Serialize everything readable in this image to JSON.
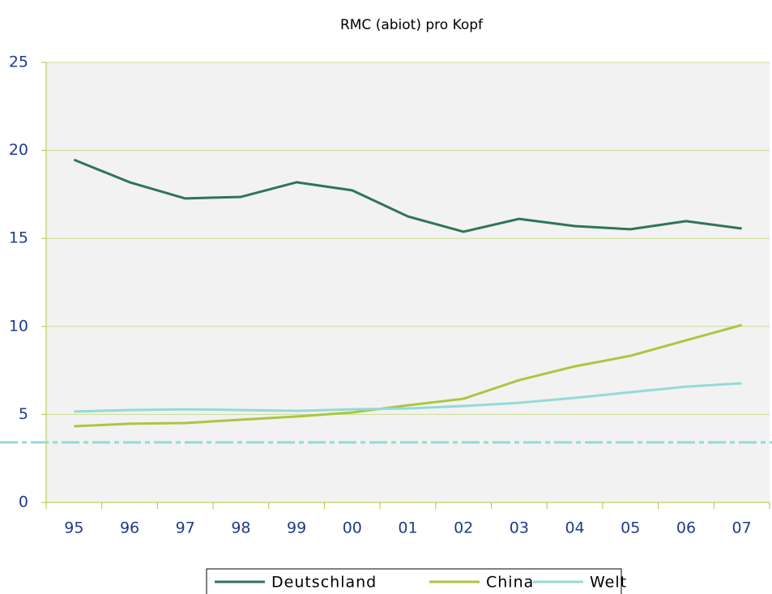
{
  "chart_data": {
    "type": "line",
    "title": "RMC (abiot) pro Kopf",
    "categories": [
      "95",
      "96",
      "97",
      "98",
      "99",
      "00",
      "01",
      "02",
      "03",
      "04",
      "05",
      "06",
      "07"
    ],
    "series": [
      {
        "name": "Deutschland",
        "color": "#2e7558",
        "values": [
          19.47,
          18.19,
          17.27,
          17.36,
          18.19,
          17.73,
          16.25,
          15.38,
          16.11,
          15.7,
          15.52,
          15.98,
          15.56
        ]
      },
      {
        "name": "China",
        "color": "#a9c73f",
        "values": [
          4.33,
          4.47,
          4.51,
          4.7,
          4.88,
          5.11,
          5.52,
          5.89,
          6.95,
          7.73,
          8.33,
          9.21,
          10.08
        ]
      },
      {
        "name": "Welt",
        "color": "#94dad6",
        "values": [
          5.16,
          5.25,
          5.29,
          5.25,
          5.2,
          5.29,
          5.34,
          5.48,
          5.66,
          5.94,
          6.26,
          6.58,
          6.77
        ]
      }
    ],
    "reference_line": {
      "value": 3.41,
      "color": "#94dad6"
    },
    "ylim": [
      0,
      25
    ],
    "yticks": [
      0,
      5,
      10,
      15,
      20,
      25
    ],
    "grid": true
  }
}
